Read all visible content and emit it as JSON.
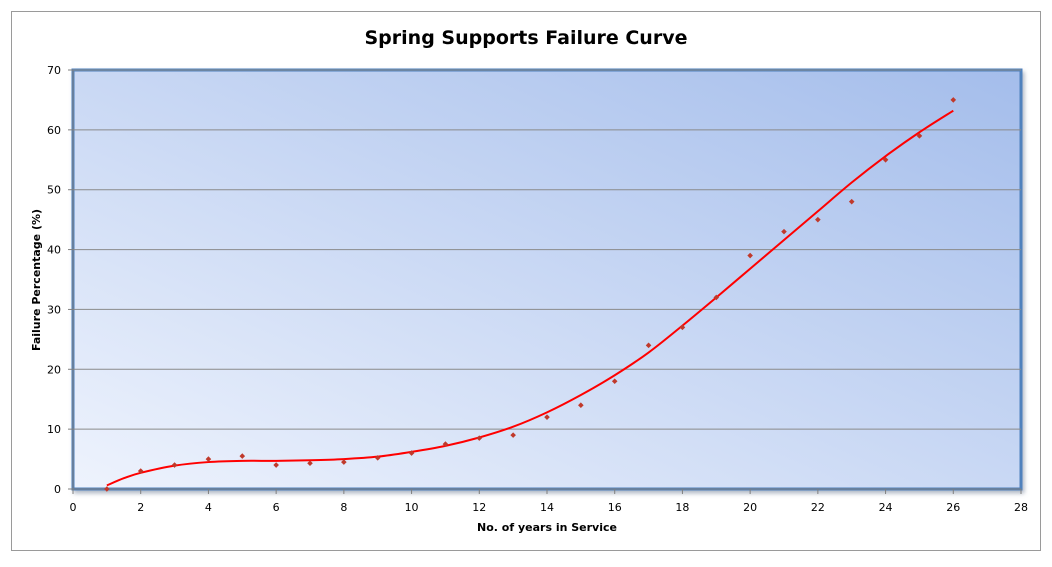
{
  "chart_data": {
    "type": "scatter",
    "title": "Spring Supports Failure Curve",
    "xlabel": "No. of years in Service",
    "ylabel": "Failure Percentage (%)",
    "xlim": [
      0,
      28
    ],
    "ylim": [
      0,
      70
    ],
    "x_ticks": [
      0,
      2,
      4,
      6,
      8,
      10,
      12,
      14,
      16,
      18,
      20,
      22,
      24,
      26,
      28
    ],
    "y_ticks": [
      0,
      10,
      20,
      30,
      40,
      50,
      60,
      70
    ],
    "grid": true,
    "legend": "none",
    "series": [
      {
        "kind": "points",
        "color": "#c0392b",
        "x": [
          1,
          2,
          3,
          4,
          5,
          6,
          7,
          8,
          9,
          10,
          11,
          12,
          13,
          14,
          15,
          16,
          17,
          18,
          19,
          20,
          21,
          22,
          23,
          24,
          25,
          26
        ],
        "y": [
          0,
          3,
          4,
          5,
          5.5,
          4,
          4.3,
          4.5,
          5.2,
          6,
          7.5,
          8.5,
          9,
          12,
          14,
          18,
          24,
          27,
          32,
          39,
          43,
          45,
          48,
          55,
          59,
          65
        ]
      },
      {
        "kind": "trendline",
        "color": "#ff0000",
        "x": [
          1,
          1.5,
          2,
          3,
          4,
          5,
          6,
          7,
          8,
          9,
          10,
          11,
          12,
          13,
          14,
          15,
          16,
          17,
          18,
          19,
          20,
          21,
          22,
          23,
          24,
          25,
          26
        ],
        "y": [
          0.6,
          1.8,
          2.7,
          3.9,
          4.5,
          4.7,
          4.7,
          4.8,
          5.0,
          5.4,
          6.2,
          7.2,
          8.6,
          10.4,
          12.8,
          15.7,
          19.0,
          22.8,
          27.3,
          32.0,
          36.8,
          41.6,
          46.4,
          51.2,
          55.6,
          59.6,
          63.2
        ]
      }
    ]
  }
}
